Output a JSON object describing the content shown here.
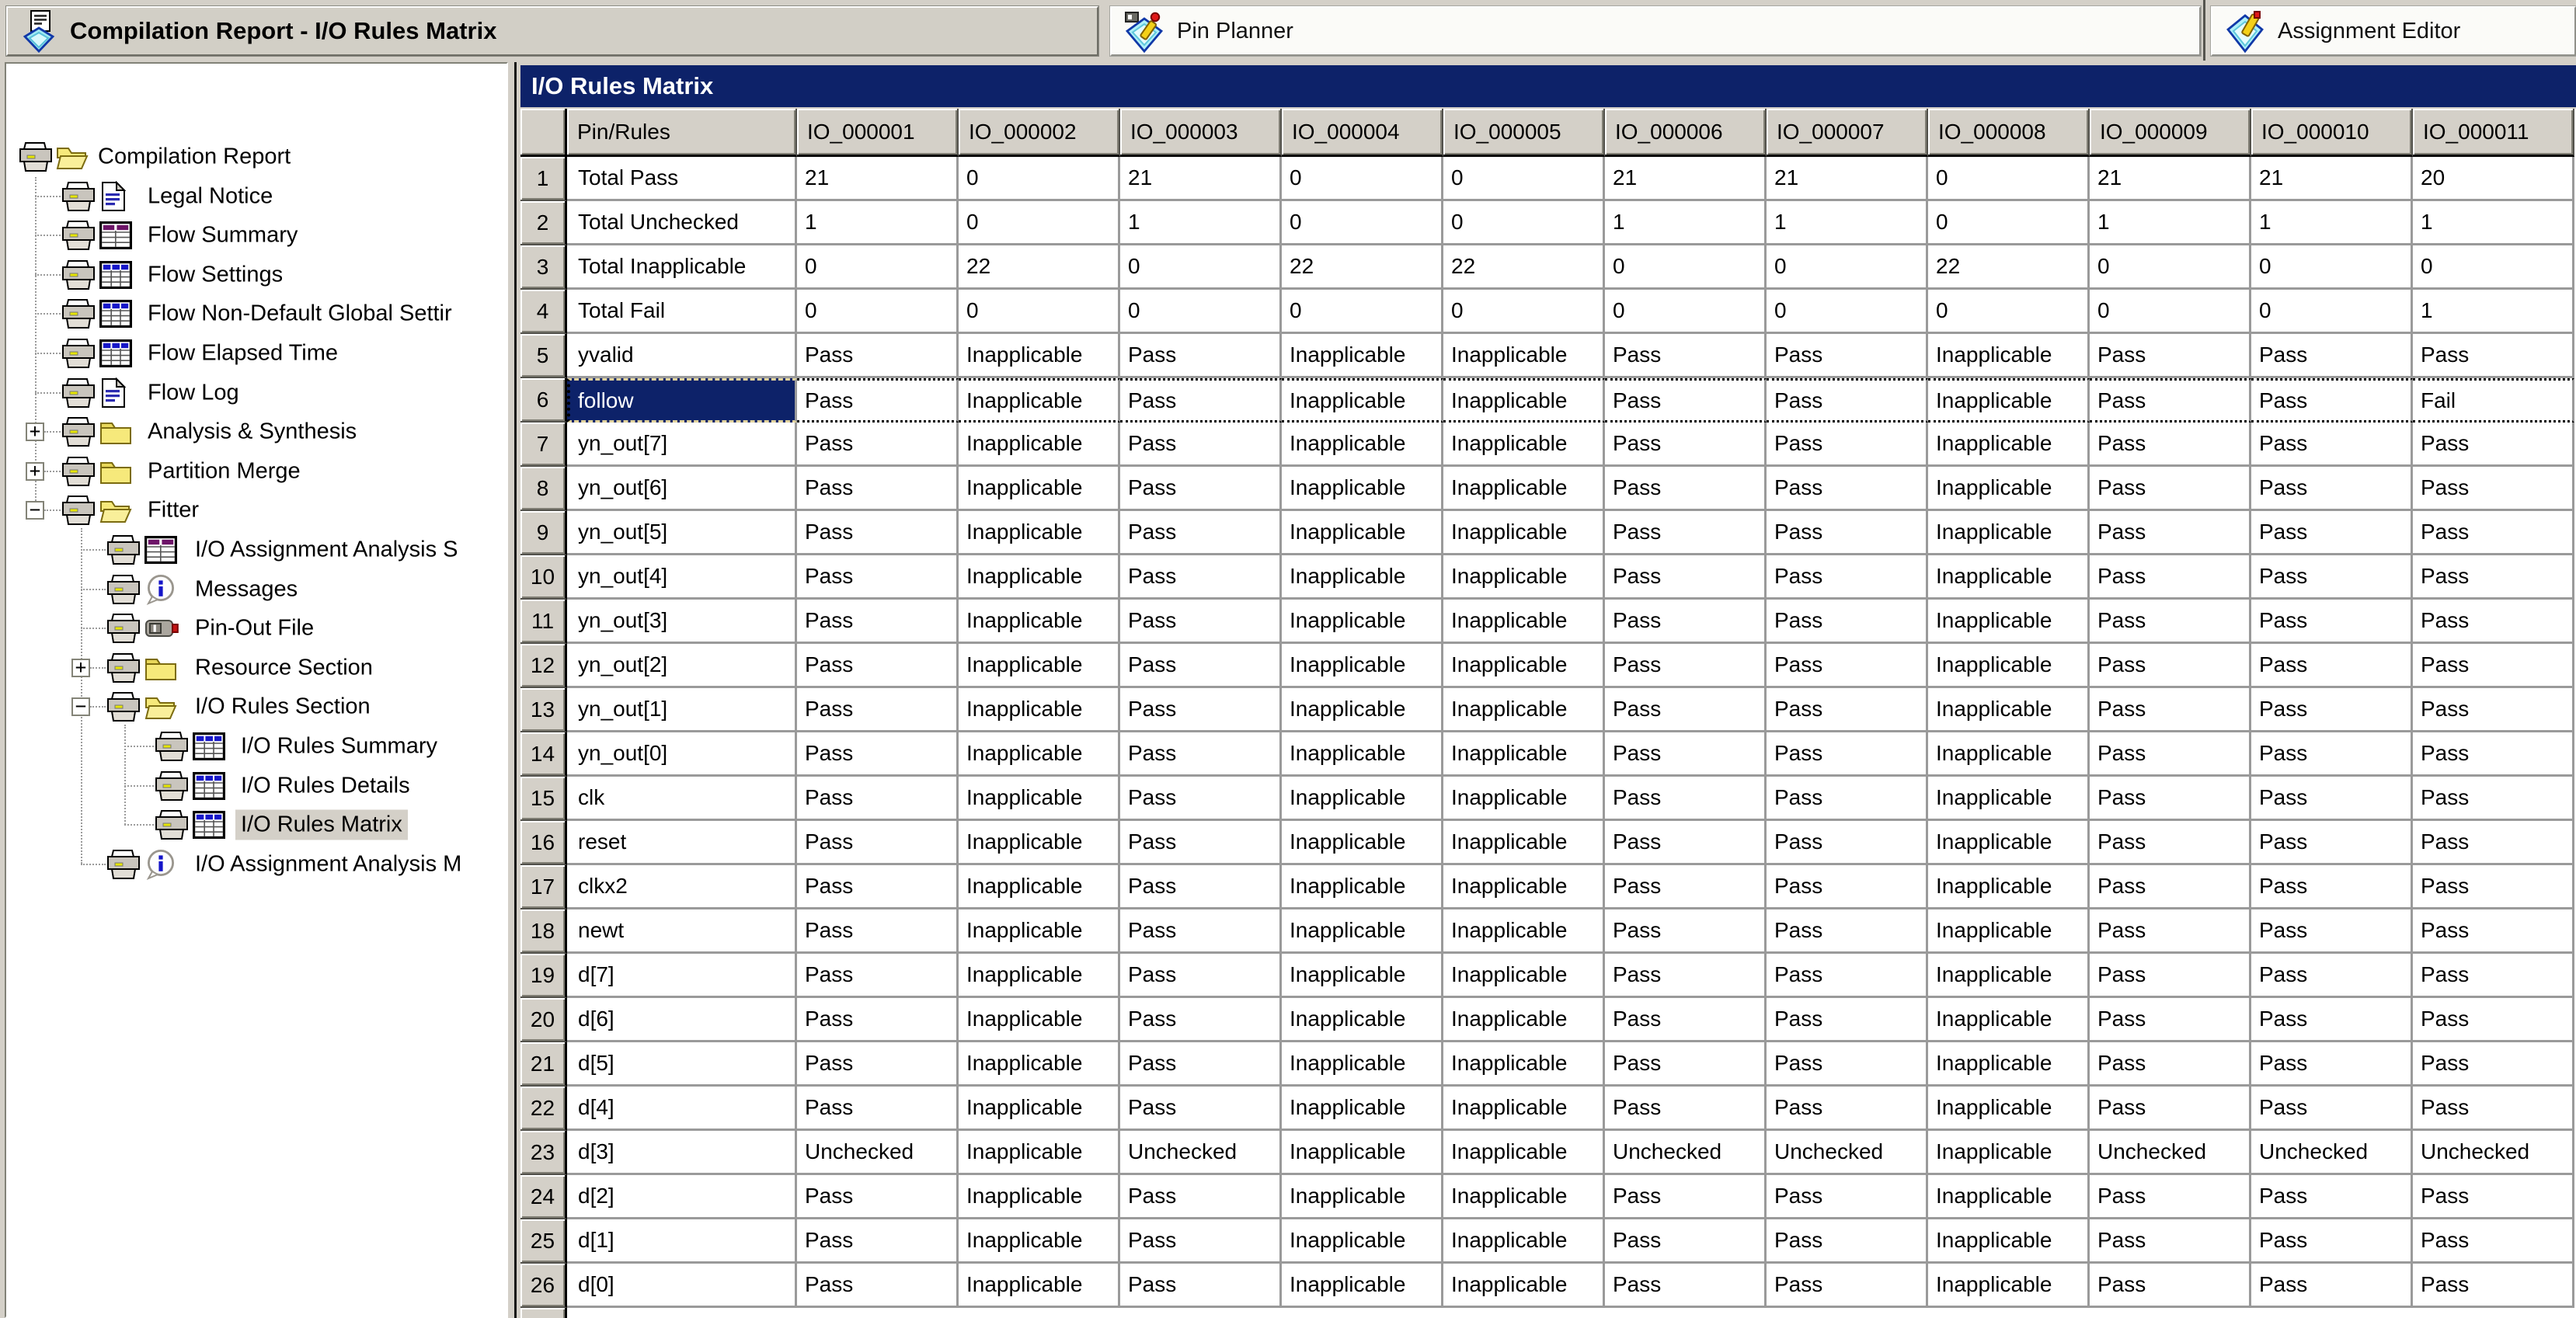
{
  "window_tabs": [
    {
      "title": "Compilation Report - I/O Rules Matrix",
      "icon": "compilation-report-icon",
      "active": true
    },
    {
      "title": "Pin Planner",
      "icon": "pin-planner-icon",
      "active": false
    },
    {
      "title": "Assignment Editor",
      "icon": "assignment-editor-icon",
      "active": false
    }
  ],
  "panel": {
    "title": "I/O Rules Matrix"
  },
  "colors": {
    "section_header": "#0d2269",
    "selection": "#0d2269",
    "chrome": "#d4d0c8",
    "gridline": "#9a9a9a"
  },
  "tree": {
    "items": [
      {
        "label": "Compilation Report",
        "level": 0,
        "icon": "open-folder-icon",
        "expand": null,
        "selected": false
      },
      {
        "label": "Legal Notice",
        "level": 1,
        "icon": "document-icon",
        "expand": null,
        "selected": false
      },
      {
        "label": "Flow Summary",
        "level": 1,
        "icon": "table-purple-icon",
        "expand": null,
        "selected": false
      },
      {
        "label": "Flow Settings",
        "level": 1,
        "icon": "table-blue-icon",
        "expand": null,
        "selected": false
      },
      {
        "label": "Flow Non-Default Global Settir",
        "level": 1,
        "icon": "table-blue-icon",
        "expand": null,
        "selected": false
      },
      {
        "label": "Flow Elapsed Time",
        "level": 1,
        "icon": "table-blue-icon",
        "expand": null,
        "selected": false
      },
      {
        "label": "Flow Log",
        "level": 1,
        "icon": "document-icon",
        "expand": null,
        "selected": false
      },
      {
        "label": "Analysis & Synthesis",
        "level": 1,
        "icon": "closed-folder-icon",
        "expand": "plus",
        "selected": false
      },
      {
        "label": "Partition Merge",
        "level": 1,
        "icon": "closed-folder-icon",
        "expand": "plus",
        "selected": false
      },
      {
        "label": "Fitter",
        "level": 1,
        "icon": "open-folder-icon",
        "expand": "minus",
        "selected": false
      },
      {
        "label": "I/O Assignment Analysis S",
        "level": 2,
        "icon": "table-purple-icon",
        "expand": null,
        "selected": false
      },
      {
        "label": "Messages",
        "level": 2,
        "icon": "info-icon",
        "expand": null,
        "selected": false
      },
      {
        "label": "Pin-Out File",
        "level": 2,
        "icon": "chip-icon",
        "expand": null,
        "selected": false
      },
      {
        "label": "Resource Section",
        "level": 2,
        "icon": "closed-folder-icon",
        "expand": "plus",
        "selected": false
      },
      {
        "label": "I/O Rules Section",
        "level": 2,
        "icon": "open-folder-icon",
        "expand": "minus",
        "selected": false
      },
      {
        "label": "I/O Rules Summary",
        "level": 3,
        "icon": "table-blue-icon",
        "expand": null,
        "selected": false
      },
      {
        "label": "I/O Rules Details",
        "level": 3,
        "icon": "table-blue-icon",
        "expand": null,
        "selected": false
      },
      {
        "label": "I/O Rules Matrix",
        "level": 3,
        "icon": "table-blue-icon",
        "expand": null,
        "selected": true
      },
      {
        "label": "I/O Assignment Analysis M",
        "level": 2,
        "icon": "info-icon",
        "expand": null,
        "selected": false
      }
    ]
  },
  "matrix": {
    "columns": [
      "Pin/Rules",
      "IO_000001",
      "IO_000002",
      "IO_000003",
      "IO_000004",
      "IO_000005",
      "IO_000006",
      "IO_000007",
      "IO_000008",
      "IO_000009",
      "IO_000010",
      "IO_000011"
    ],
    "rows": [
      {
        "num": 1,
        "pin": "Total Pass",
        "selected": false,
        "values": [
          "21",
          "0",
          "21",
          "0",
          "0",
          "21",
          "21",
          "0",
          "21",
          "21",
          "20"
        ]
      },
      {
        "num": 2,
        "pin": "Total Unchecked",
        "selected": false,
        "values": [
          "1",
          "0",
          "1",
          "0",
          "0",
          "1",
          "1",
          "0",
          "1",
          "1",
          "1"
        ]
      },
      {
        "num": 3,
        "pin": "Total Inapplicable",
        "selected": false,
        "values": [
          "0",
          "22",
          "0",
          "22",
          "22",
          "0",
          "0",
          "22",
          "0",
          "0",
          "0"
        ]
      },
      {
        "num": 4,
        "pin": "Total Fail",
        "selected": false,
        "values": [
          "0",
          "0",
          "0",
          "0",
          "0",
          "0",
          "0",
          "0",
          "0",
          "0",
          "1"
        ]
      },
      {
        "num": 5,
        "pin": "yvalid",
        "selected": false,
        "values": [
          "Pass",
          "Inapplicable",
          "Pass",
          "Inapplicable",
          "Inapplicable",
          "Pass",
          "Pass",
          "Inapplicable",
          "Pass",
          "Pass",
          "Pass"
        ]
      },
      {
        "num": 6,
        "pin": "follow",
        "selected": true,
        "values": [
          "Pass",
          "Inapplicable",
          "Pass",
          "Inapplicable",
          "Inapplicable",
          "Pass",
          "Pass",
          "Inapplicable",
          "Pass",
          "Pass",
          "Fail"
        ]
      },
      {
        "num": 7,
        "pin": "yn_out[7]",
        "selected": false,
        "values": [
          "Pass",
          "Inapplicable",
          "Pass",
          "Inapplicable",
          "Inapplicable",
          "Pass",
          "Pass",
          "Inapplicable",
          "Pass",
          "Pass",
          "Pass"
        ]
      },
      {
        "num": 8,
        "pin": "yn_out[6]",
        "selected": false,
        "values": [
          "Pass",
          "Inapplicable",
          "Pass",
          "Inapplicable",
          "Inapplicable",
          "Pass",
          "Pass",
          "Inapplicable",
          "Pass",
          "Pass",
          "Pass"
        ]
      },
      {
        "num": 9,
        "pin": "yn_out[5]",
        "selected": false,
        "values": [
          "Pass",
          "Inapplicable",
          "Pass",
          "Inapplicable",
          "Inapplicable",
          "Pass",
          "Pass",
          "Inapplicable",
          "Pass",
          "Pass",
          "Pass"
        ]
      },
      {
        "num": 10,
        "pin": "yn_out[4]",
        "selected": false,
        "values": [
          "Pass",
          "Inapplicable",
          "Pass",
          "Inapplicable",
          "Inapplicable",
          "Pass",
          "Pass",
          "Inapplicable",
          "Pass",
          "Pass",
          "Pass"
        ]
      },
      {
        "num": 11,
        "pin": "yn_out[3]",
        "selected": false,
        "values": [
          "Pass",
          "Inapplicable",
          "Pass",
          "Inapplicable",
          "Inapplicable",
          "Pass",
          "Pass",
          "Inapplicable",
          "Pass",
          "Pass",
          "Pass"
        ]
      },
      {
        "num": 12,
        "pin": "yn_out[2]",
        "selected": false,
        "values": [
          "Pass",
          "Inapplicable",
          "Pass",
          "Inapplicable",
          "Inapplicable",
          "Pass",
          "Pass",
          "Inapplicable",
          "Pass",
          "Pass",
          "Pass"
        ]
      },
      {
        "num": 13,
        "pin": "yn_out[1]",
        "selected": false,
        "values": [
          "Pass",
          "Inapplicable",
          "Pass",
          "Inapplicable",
          "Inapplicable",
          "Pass",
          "Pass",
          "Inapplicable",
          "Pass",
          "Pass",
          "Pass"
        ]
      },
      {
        "num": 14,
        "pin": "yn_out[0]",
        "selected": false,
        "values": [
          "Pass",
          "Inapplicable",
          "Pass",
          "Inapplicable",
          "Inapplicable",
          "Pass",
          "Pass",
          "Inapplicable",
          "Pass",
          "Pass",
          "Pass"
        ]
      },
      {
        "num": 15,
        "pin": "clk",
        "selected": false,
        "values": [
          "Pass",
          "Inapplicable",
          "Pass",
          "Inapplicable",
          "Inapplicable",
          "Pass",
          "Pass",
          "Inapplicable",
          "Pass",
          "Pass",
          "Pass"
        ]
      },
      {
        "num": 16,
        "pin": "reset",
        "selected": false,
        "values": [
          "Pass",
          "Inapplicable",
          "Pass",
          "Inapplicable",
          "Inapplicable",
          "Pass",
          "Pass",
          "Inapplicable",
          "Pass",
          "Pass",
          "Pass"
        ]
      },
      {
        "num": 17,
        "pin": "clkx2",
        "selected": false,
        "values": [
          "Pass",
          "Inapplicable",
          "Pass",
          "Inapplicable",
          "Inapplicable",
          "Pass",
          "Pass",
          "Inapplicable",
          "Pass",
          "Pass",
          "Pass"
        ]
      },
      {
        "num": 18,
        "pin": "newt",
        "selected": false,
        "values": [
          "Pass",
          "Inapplicable",
          "Pass",
          "Inapplicable",
          "Inapplicable",
          "Pass",
          "Pass",
          "Inapplicable",
          "Pass",
          "Pass",
          "Pass"
        ]
      },
      {
        "num": 19,
        "pin": "d[7]",
        "selected": false,
        "values": [
          "Pass",
          "Inapplicable",
          "Pass",
          "Inapplicable",
          "Inapplicable",
          "Pass",
          "Pass",
          "Inapplicable",
          "Pass",
          "Pass",
          "Pass"
        ]
      },
      {
        "num": 20,
        "pin": "d[6]",
        "selected": false,
        "values": [
          "Pass",
          "Inapplicable",
          "Pass",
          "Inapplicable",
          "Inapplicable",
          "Pass",
          "Pass",
          "Inapplicable",
          "Pass",
          "Pass",
          "Pass"
        ]
      },
      {
        "num": 21,
        "pin": "d[5]",
        "selected": false,
        "values": [
          "Pass",
          "Inapplicable",
          "Pass",
          "Inapplicable",
          "Inapplicable",
          "Pass",
          "Pass",
          "Inapplicable",
          "Pass",
          "Pass",
          "Pass"
        ]
      },
      {
        "num": 22,
        "pin": "d[4]",
        "selected": false,
        "values": [
          "Pass",
          "Inapplicable",
          "Pass",
          "Inapplicable",
          "Inapplicable",
          "Pass",
          "Pass",
          "Inapplicable",
          "Pass",
          "Pass",
          "Pass"
        ]
      },
      {
        "num": 23,
        "pin": "d[3]",
        "selected": false,
        "values": [
          "Unchecked",
          "Inapplicable",
          "Unchecked",
          "Inapplicable",
          "Inapplicable",
          "Unchecked",
          "Unchecked",
          "Inapplicable",
          "Unchecked",
          "Unchecked",
          "Unchecked"
        ]
      },
      {
        "num": 24,
        "pin": "d[2]",
        "selected": false,
        "values": [
          "Pass",
          "Inapplicable",
          "Pass",
          "Inapplicable",
          "Inapplicable",
          "Pass",
          "Pass",
          "Inapplicable",
          "Pass",
          "Pass",
          "Pass"
        ]
      },
      {
        "num": 25,
        "pin": "d[1]",
        "selected": false,
        "values": [
          "Pass",
          "Inapplicable",
          "Pass",
          "Inapplicable",
          "Inapplicable",
          "Pass",
          "Pass",
          "Inapplicable",
          "Pass",
          "Pass",
          "Pass"
        ]
      },
      {
        "num": 26,
        "pin": "d[0]",
        "selected": false,
        "values": [
          "Pass",
          "Inapplicable",
          "Pass",
          "Inapplicable",
          "Inapplicable",
          "Pass",
          "Pass",
          "Inapplicable",
          "Pass",
          "Pass",
          "Pass"
        ]
      }
    ]
  }
}
